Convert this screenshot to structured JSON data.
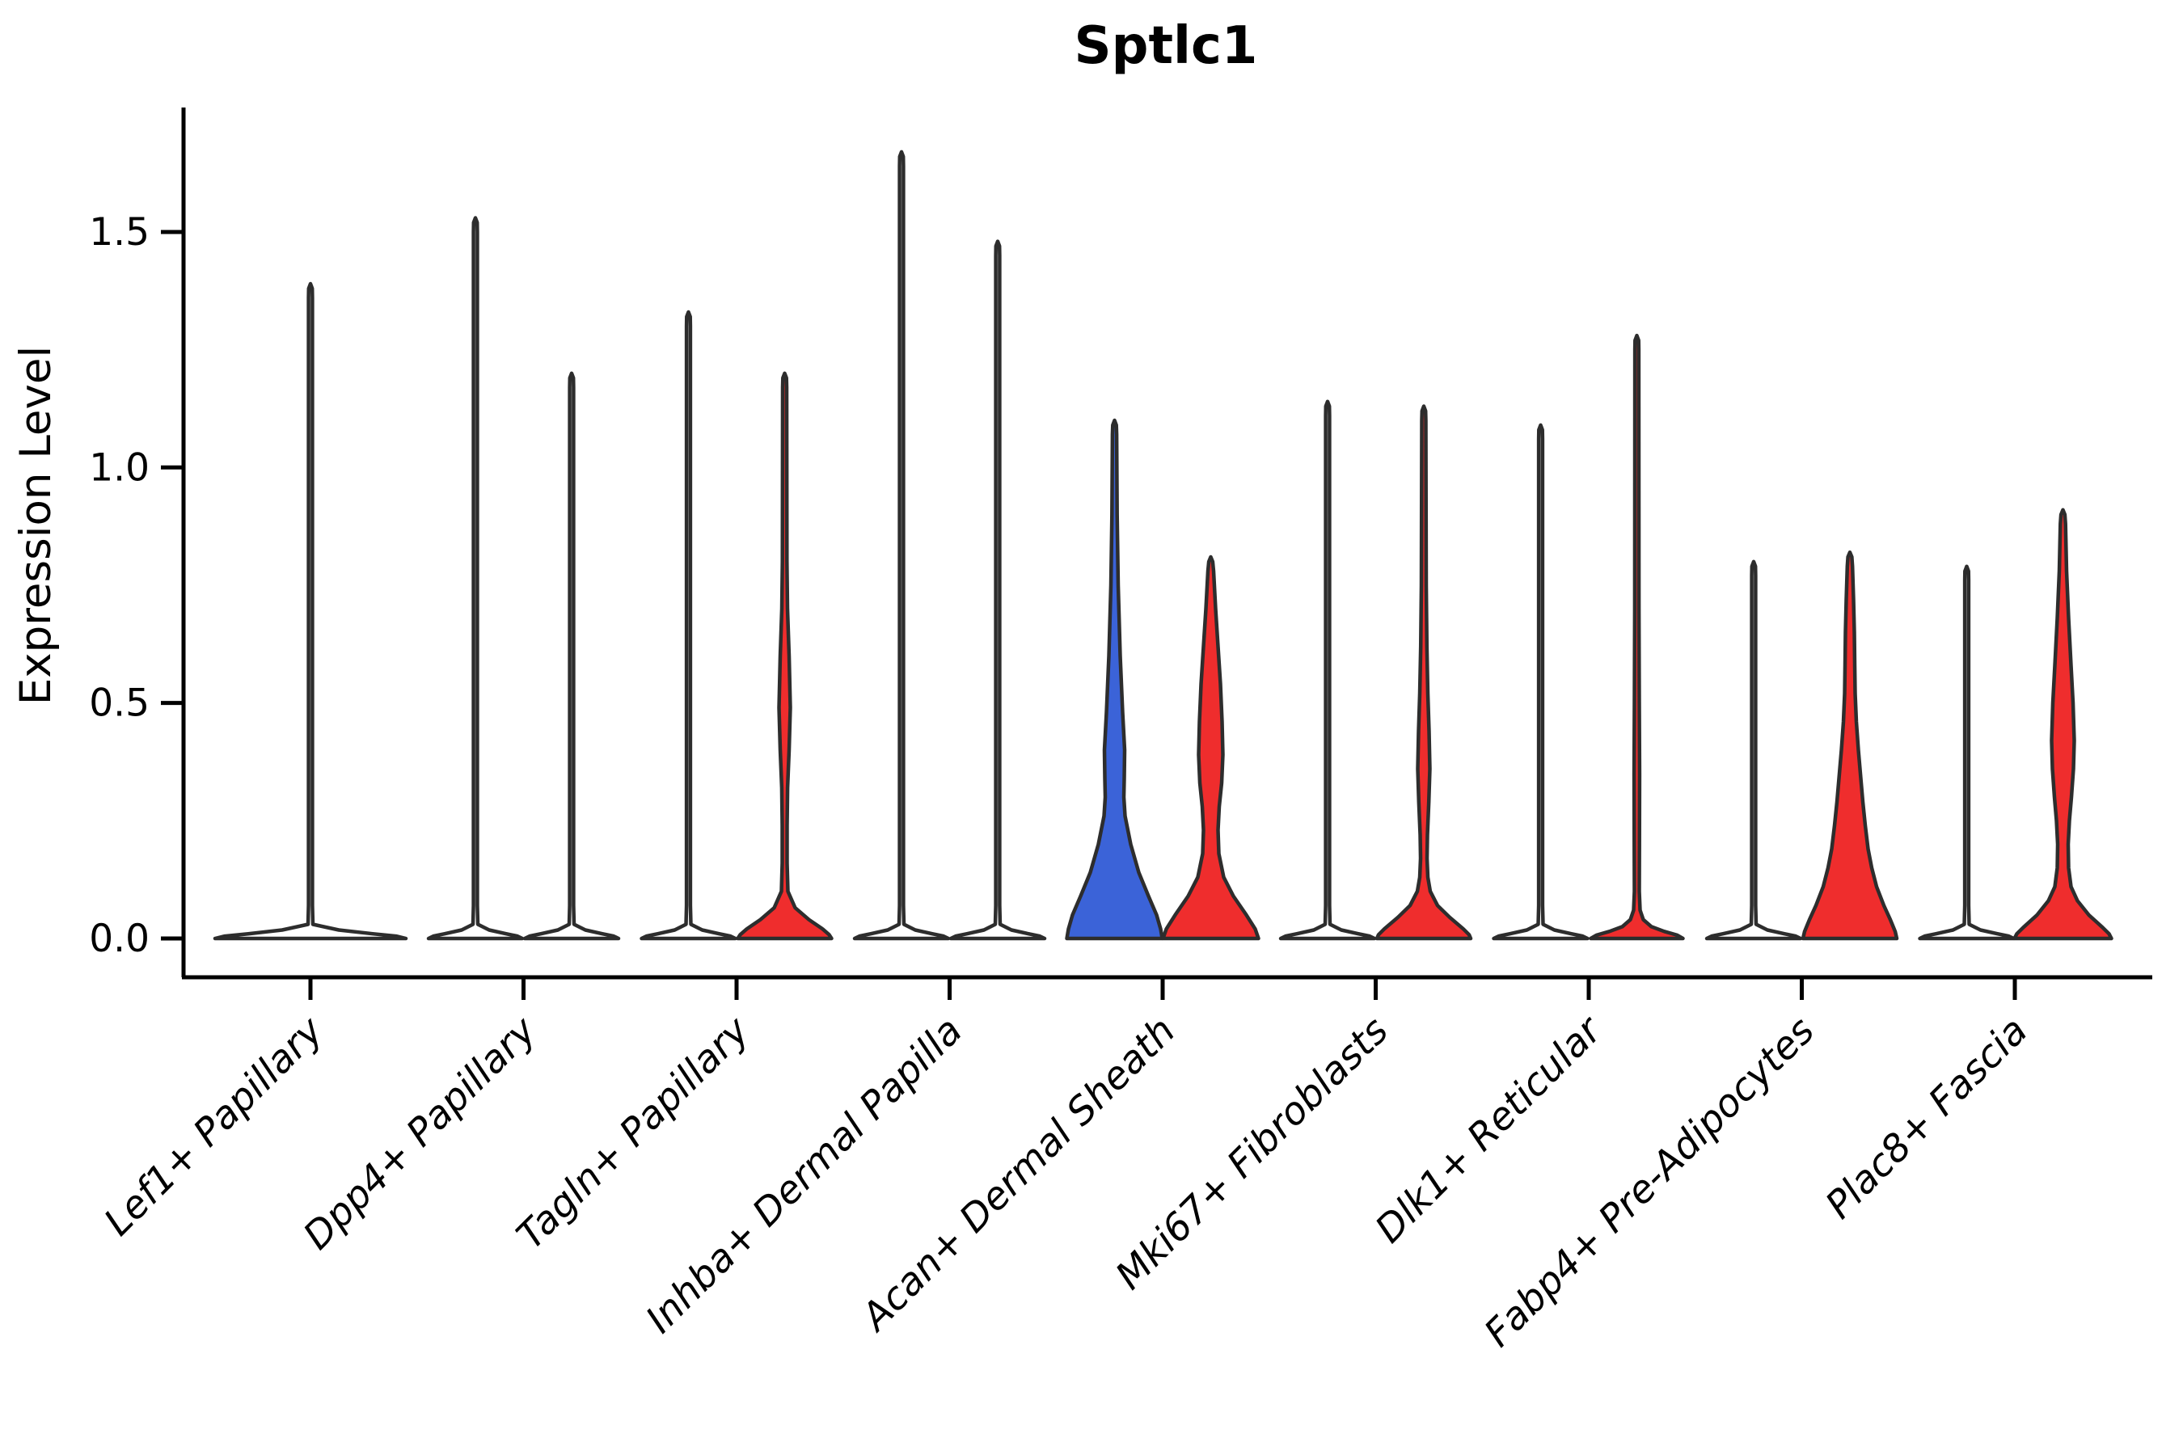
{
  "title": "Sptlc1",
  "axes": {
    "ylabel": "Expression Level",
    "xlabel": "",
    "ytick_labels": [
      "0.0",
      "0.5",
      "1.0",
      "1.5"
    ]
  },
  "colors": {
    "red": "#EF2D2D",
    "blue": "#3B63D8",
    "white": "#FFFFFF",
    "violin_edge": "#2D2D2D",
    "axis": "#000000",
    "background": "#FFFFFF"
  },
  "chart_data": {
    "type": "violin",
    "title": "Sptlc1",
    "ylabel": "Expression Level",
    "xlabel": "",
    "categories": [
      "Lef1+ Papillary",
      "Dpp4+ Papillary",
      "Tagln+ Papillary",
      "Inhba+ Dermal Papilla",
      "Acan+ Dermal Sheath",
      "Mki67+ Fibroblasts",
      "Dlk1+ Reticular",
      "Fabp4+ Pre-Adipocytes",
      "Plac8+ Fascia"
    ],
    "yticks": [
      0.0,
      0.5,
      1.0,
      1.5
    ],
    "ytick_labels": [
      "0.0",
      "0.5",
      "1.0",
      "1.5"
    ],
    "ylim": [
      -0.08,
      1.76
    ],
    "grid": false,
    "legend": "none",
    "description": "Each category shows violins of Sptlc1 expression; most density sits at 0 with a thin spike to the max value. Colored violins (blue/red) have visible density bulges above 0.",
    "violins": [
      {
        "category_index": 0,
        "category": "Lef1+ Papillary",
        "position": "single",
        "color_key": "white",
        "max_expression": 1.39,
        "profile": [
          [
            1.39,
            0
          ],
          [
            1.38,
            2.2
          ],
          [
            1.36,
            2.4
          ],
          [
            0.07,
            2.4
          ],
          [
            0.03,
            3
          ],
          [
            0.018,
            35
          ],
          [
            0.01,
            77
          ],
          [
            0.005,
            106
          ],
          [
            0,
            118
          ]
        ]
      },
      {
        "category_index": 1,
        "category": "Dpp4+ Papillary",
        "position": "left",
        "color_key": "white",
        "max_expression": 1.53,
        "profile": [
          [
            1.53,
            0
          ],
          [
            1.52,
            2.2
          ],
          [
            1.5,
            2.4
          ],
          [
            0.07,
            2.4
          ],
          [
            0.03,
            3
          ],
          [
            0.018,
            17
          ],
          [
            0.01,
            38
          ],
          [
            0.005,
            52
          ],
          [
            0,
            58
          ]
        ]
      },
      {
        "category_index": 1,
        "category": "Dpp4+ Papillary",
        "position": "right",
        "color_key": "white",
        "max_expression": 1.2,
        "profile": [
          [
            1.2,
            0
          ],
          [
            1.19,
            2.2
          ],
          [
            1.17,
            2.4
          ],
          [
            0.07,
            2.4
          ],
          [
            0.03,
            3
          ],
          [
            0.018,
            17
          ],
          [
            0.01,
            38
          ],
          [
            0.005,
            52
          ],
          [
            0,
            58
          ]
        ]
      },
      {
        "category_index": 2,
        "category": "Tagln+ Papillary",
        "position": "left",
        "color_key": "white",
        "max_expression": 1.33,
        "profile": [
          [
            1.33,
            0
          ],
          [
            1.32,
            2.2
          ],
          [
            1.3,
            2.4
          ],
          [
            0.07,
            2.4
          ],
          [
            0.03,
            3
          ],
          [
            0.018,
            17
          ],
          [
            0.01,
            38
          ],
          [
            0.005,
            52
          ],
          [
            0,
            58
          ]
        ]
      },
      {
        "category_index": 2,
        "category": "Tagln+ Papillary",
        "position": "right",
        "color_key": "red",
        "max_expression": 1.2,
        "profile": [
          [
            1.2,
            0
          ],
          [
            1.19,
            2.2
          ],
          [
            1.17,
            2.5
          ],
          [
            0.8,
            2.8
          ],
          [
            0.7,
            3.5
          ],
          [
            0.6,
            5.5
          ],
          [
            0.49,
            7
          ],
          [
            0.4,
            5.5
          ],
          [
            0.32,
            3.6
          ],
          [
            0.24,
            3
          ],
          [
            0.16,
            3
          ],
          [
            0.1,
            4
          ],
          [
            0.065,
            13
          ],
          [
            0.04,
            30
          ],
          [
            0.02,
            47
          ],
          [
            0.008,
            55
          ],
          [
            0,
            58
          ]
        ]
      },
      {
        "category_index": 3,
        "category": "Inhba+ Dermal Papilla",
        "position": "left",
        "color_key": "white",
        "max_expression": 1.67,
        "profile": [
          [
            1.67,
            0
          ],
          [
            1.66,
            2.2
          ],
          [
            1.64,
            2.4
          ],
          [
            0.07,
            2.4
          ],
          [
            0.03,
            3
          ],
          [
            0.018,
            17
          ],
          [
            0.01,
            38
          ],
          [
            0.005,
            52
          ],
          [
            0,
            58
          ]
        ]
      },
      {
        "category_index": 3,
        "category": "Inhba+ Dermal Papilla",
        "position": "right",
        "color_key": "white",
        "max_expression": 1.48,
        "profile": [
          [
            1.48,
            0
          ],
          [
            1.47,
            2.2
          ],
          [
            1.45,
            2.4
          ],
          [
            0.07,
            2.4
          ],
          [
            0.03,
            3
          ],
          [
            0.018,
            17
          ],
          [
            0.01,
            38
          ],
          [
            0.005,
            52
          ],
          [
            0,
            58
          ]
        ]
      },
      {
        "category_index": 4,
        "category": "Acan+ Dermal Sheath",
        "position": "left",
        "color_key": "blue",
        "max_expression": 1.1,
        "profile": [
          [
            1.1,
            0
          ],
          [
            1.09,
            2.2
          ],
          [
            1.07,
            2.6
          ],
          [
            0.9,
            3.2
          ],
          [
            0.75,
            4.5
          ],
          [
            0.6,
            7
          ],
          [
            0.48,
            10
          ],
          [
            0.4,
            12.5
          ],
          [
            0.34,
            12
          ],
          [
            0.3,
            11.5
          ],
          [
            0.26,
            13
          ],
          [
            0.2,
            20
          ],
          [
            0.14,
            30
          ],
          [
            0.09,
            42
          ],
          [
            0.05,
            52
          ],
          [
            0.02,
            57
          ],
          [
            0,
            59
          ]
        ]
      },
      {
        "category_index": 4,
        "category": "Acan+ Dermal Sheath",
        "position": "right",
        "color_key": "red",
        "max_expression": 0.81,
        "profile": [
          [
            0.81,
            0
          ],
          [
            0.8,
            2.4
          ],
          [
            0.78,
            3.5
          ],
          [
            0.7,
            6
          ],
          [
            0.62,
            9
          ],
          [
            0.54,
            12
          ],
          [
            0.46,
            14
          ],
          [
            0.39,
            15
          ],
          [
            0.33,
            13.5
          ],
          [
            0.28,
            10.5
          ],
          [
            0.23,
            9
          ],
          [
            0.18,
            10
          ],
          [
            0.13,
            16
          ],
          [
            0.09,
            28
          ],
          [
            0.05,
            44
          ],
          [
            0.02,
            55
          ],
          [
            0,
            59
          ]
        ]
      },
      {
        "category_index": 5,
        "category": "Mki67+ Fibroblasts",
        "position": "left",
        "color_key": "white",
        "max_expression": 1.14,
        "profile": [
          [
            1.14,
            0
          ],
          [
            1.13,
            2.2
          ],
          [
            1.11,
            2.4
          ],
          [
            0.07,
            2.4
          ],
          [
            0.03,
            3
          ],
          [
            0.018,
            17
          ],
          [
            0.01,
            38
          ],
          [
            0.005,
            52
          ],
          [
            0,
            58
          ]
        ]
      },
      {
        "category_index": 5,
        "category": "Mki67+ Fibroblasts",
        "position": "right",
        "color_key": "red",
        "max_expression": 1.13,
        "profile": [
          [
            1.13,
            0
          ],
          [
            1.12,
            2.2
          ],
          [
            1.1,
            2.5
          ],
          [
            0.75,
            3
          ],
          [
            0.62,
            3.8
          ],
          [
            0.52,
            5
          ],
          [
            0.44,
            6.5
          ],
          [
            0.36,
            7.5
          ],
          [
            0.29,
            6.2
          ],
          [
            0.22,
            4.5
          ],
          [
            0.17,
            4
          ],
          [
            0.13,
            5
          ],
          [
            0.1,
            8
          ],
          [
            0.07,
            17
          ],
          [
            0.045,
            32
          ],
          [
            0.02,
            49
          ],
          [
            0.008,
            56
          ],
          [
            0,
            58
          ]
        ]
      },
      {
        "category_index": 6,
        "category": "Dlk1+ Reticular",
        "position": "left",
        "color_key": "white",
        "max_expression": 1.09,
        "profile": [
          [
            1.09,
            0
          ],
          [
            1.08,
            2.2
          ],
          [
            1.06,
            2.4
          ],
          [
            0.07,
            2.4
          ],
          [
            0.03,
            3
          ],
          [
            0.018,
            17
          ],
          [
            0.01,
            38
          ],
          [
            0.005,
            52
          ],
          [
            0,
            58
          ]
        ]
      },
      {
        "category_index": 6,
        "category": "Dlk1+ Reticular",
        "position": "right",
        "color_key": "red",
        "max_expression": 1.28,
        "profile": [
          [
            1.28,
            0
          ],
          [
            1.27,
            2.2
          ],
          [
            1.25,
            2.4
          ],
          [
            0.7,
            2.6
          ],
          [
            0.5,
            3
          ],
          [
            0.35,
            3.4
          ],
          [
            0.2,
            3.2
          ],
          [
            0.1,
            3
          ],
          [
            0.06,
            4
          ],
          [
            0.04,
            8
          ],
          [
            0.025,
            18
          ],
          [
            0.015,
            34
          ],
          [
            0.007,
            50
          ],
          [
            0,
            57
          ]
        ]
      },
      {
        "category_index": 7,
        "category": "Fabp4+ Pre-Adipocytes",
        "position": "left",
        "color_key": "white",
        "max_expression": 0.8,
        "profile": [
          [
            0.8,
            0
          ],
          [
            0.79,
            2.2
          ],
          [
            0.77,
            2.4
          ],
          [
            0.07,
            2.4
          ],
          [
            0.03,
            3
          ],
          [
            0.018,
            17
          ],
          [
            0.01,
            38
          ],
          [
            0.005,
            52
          ],
          [
            0,
            58
          ]
        ]
      },
      {
        "category_index": 7,
        "category": "Fabp4+ Pre-Adipocytes",
        "position": "right",
        "color_key": "red",
        "max_expression": 0.82,
        "profile": [
          [
            0.82,
            0
          ],
          [
            0.81,
            2.4
          ],
          [
            0.79,
            3.2
          ],
          [
            0.72,
            4.5
          ],
          [
            0.65,
            5.5
          ],
          [
            0.58,
            6
          ],
          [
            0.52,
            6.5
          ],
          [
            0.46,
            8
          ],
          [
            0.4,
            10.5
          ],
          [
            0.34,
            13.5
          ],
          [
            0.29,
            16
          ],
          [
            0.24,
            19
          ],
          [
            0.19,
            22.5
          ],
          [
            0.15,
            27
          ],
          [
            0.11,
            33
          ],
          [
            0.07,
            42
          ],
          [
            0.04,
            50
          ],
          [
            0.015,
            56
          ],
          [
            0,
            58
          ]
        ]
      },
      {
        "category_index": 8,
        "category": "Plac8+ Fascia",
        "position": "left",
        "color_key": "white",
        "max_expression": 0.79,
        "profile": [
          [
            0.79,
            0
          ],
          [
            0.78,
            2.2
          ],
          [
            0.76,
            2.4
          ],
          [
            0.07,
            2.4
          ],
          [
            0.03,
            3
          ],
          [
            0.018,
            17
          ],
          [
            0.01,
            38
          ],
          [
            0.005,
            52
          ],
          [
            0,
            58
          ]
        ]
      },
      {
        "category_index": 8,
        "category": "Plac8+ Fascia",
        "position": "right",
        "color_key": "red",
        "max_expression": 0.91,
        "profile": [
          [
            0.91,
            0
          ],
          [
            0.9,
            2.4
          ],
          [
            0.88,
            3.2
          ],
          [
            0.78,
            4.5
          ],
          [
            0.68,
            7
          ],
          [
            0.58,
            10
          ],
          [
            0.5,
            12.5
          ],
          [
            0.42,
            14
          ],
          [
            0.36,
            13
          ],
          [
            0.3,
            10.5
          ],
          [
            0.25,
            8
          ],
          [
            0.2,
            6.5
          ],
          [
            0.15,
            7
          ],
          [
            0.11,
            10
          ],
          [
            0.08,
            18
          ],
          [
            0.05,
            32
          ],
          [
            0.025,
            48
          ],
          [
            0.01,
            57
          ],
          [
            0,
            60
          ]
        ]
      }
    ]
  }
}
